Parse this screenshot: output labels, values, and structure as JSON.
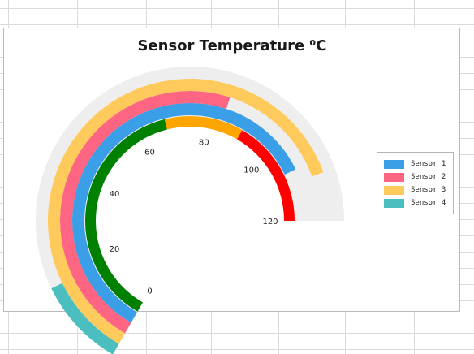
{
  "chart_data": {
    "type": "radial-gauge",
    "title": "Sensor Temperature ⁰C",
    "range": [
      0,
      120
    ],
    "ticks": [
      0,
      20,
      40,
      60,
      80,
      100,
      120
    ],
    "color_bands": [
      {
        "from": 0,
        "to": 68,
        "color": "#008000"
      },
      {
        "from": 68,
        "to": 90,
        "color": "#ffa500"
      },
      {
        "from": 90,
        "to": 120,
        "color": "#ff0000"
      }
    ],
    "series": [
      {
        "name": "Sensor 1",
        "value": 107,
        "color": "#3a9fe6"
      },
      {
        "name": "Sensor 2",
        "value": 84,
        "color": "#fd6582"
      },
      {
        "name": "Sensor 3",
        "value": 110,
        "color": "#ffca5c"
      },
      {
        "name": "Sensor 4",
        "value": 17,
        "color": "#4bbfbf"
      }
    ],
    "track_color": "#eeeeee",
    "legend_position": "right"
  }
}
